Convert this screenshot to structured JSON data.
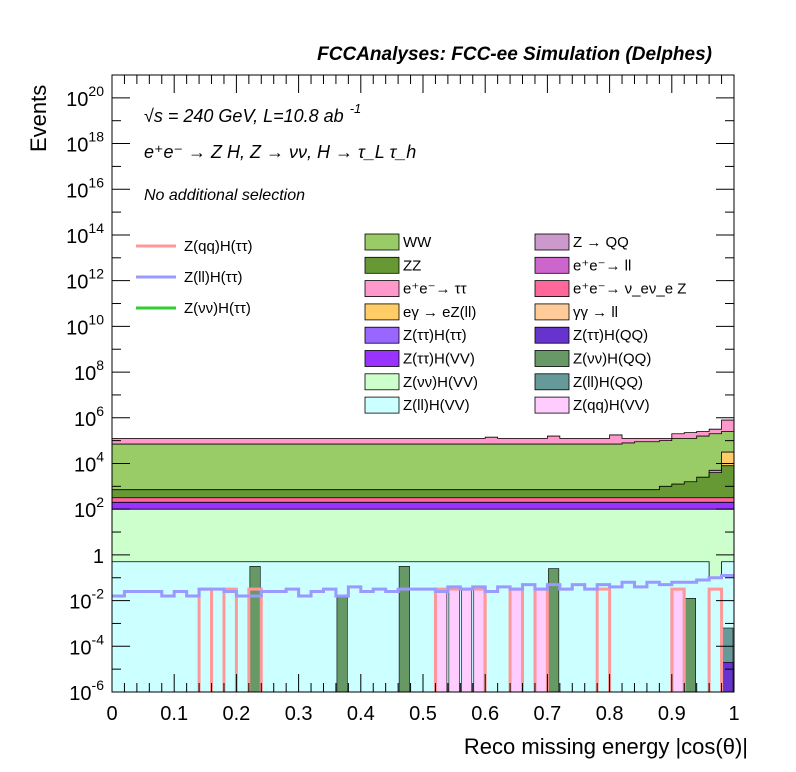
{
  "chart_data": {
    "type": "area",
    "title": "FCCAnalyses: FCC-ee Simulation (Delphes)",
    "xlabel": "Reco missing energy |cos(θ)|",
    "ylabel": "Events",
    "xlim": [
      0,
      1
    ],
    "ylim": [
      1e-06,
      1e+21
    ],
    "yscale": "log",
    "x_ticks": [
      "0",
      "0.1",
      "0.2",
      "0.3",
      "0.4",
      "0.5",
      "0.6",
      "0.7",
      "0.8",
      "0.9",
      "1"
    ],
    "y_ticks": [
      {
        "base": "10",
        "exp": "-6"
      },
      {
        "base": "10",
        "exp": "-4"
      },
      {
        "base": "10",
        "exp": "-2"
      },
      {
        "base": "1",
        "exp": ""
      },
      {
        "base": "10",
        "exp": "2"
      },
      {
        "base": "10",
        "exp": "4"
      },
      {
        "base": "10",
        "exp": "6"
      },
      {
        "base": "10",
        "exp": "8"
      },
      {
        "base": "10",
        "exp": "10"
      },
      {
        "base": "10",
        "exp": "12"
      },
      {
        "base": "10",
        "exp": "14"
      },
      {
        "base": "10",
        "exp": "16"
      },
      {
        "base": "10",
        "exp": "18"
      },
      {
        "base": "10",
        "exp": "20"
      }
    ],
    "annotations": {
      "energy_prefix": "√s = 240 GeV, L=10.8 ab",
      "energy_exp": "-1",
      "process": "e⁺e⁻ → Z H, Z → νν, H → τ_L τ_h",
      "selection": "No additional selection"
    },
    "bin_edges": [
      0,
      0.02,
      0.04,
      0.06,
      0.08,
      0.1,
      0.12,
      0.14,
      0.16,
      0.18,
      0.2,
      0.22,
      0.24,
      0.26,
      0.28,
      0.3,
      0.32,
      0.34,
      0.36,
      0.38,
      0.4,
      0.42,
      0.44,
      0.46,
      0.48,
      0.5,
      0.52,
      0.54,
      0.56,
      0.58,
      0.6,
      0.62,
      0.64,
      0.66,
      0.68,
      0.7,
      0.72,
      0.74,
      0.76,
      0.78,
      0.8,
      0.82,
      0.84,
      0.86,
      0.88,
      0.9,
      0.92,
      0.94,
      0.96,
      0.98,
      1.0
    ],
    "stack_layer_tops_log10": [
      {
        "name": "Z(ll)H(VV)",
        "color": "#ccffff",
        "default": -0.3,
        "overrides": {
          "48": -1.0
        }
      },
      {
        "name": "Z(νν)H(VV)",
        "color": "#ccffcc",
        "default": 2.0,
        "overrides": {}
      },
      {
        "name": "Z(ττ)H(VV)",
        "color": "#9933ff",
        "default": 2.3,
        "overrides": {}
      },
      {
        "name": "e⁺e⁻→ ν_eν_e Z",
        "color": "#ff6699",
        "default": 2.5,
        "overrides": {}
      },
      {
        "name": "ZZ",
        "color": "#669933",
        "default": 2.85,
        "overrides": {
          "44": 3.0,
          "45": 3.1,
          "46": 3.2,
          "47": 3.4,
          "48": 3.6,
          "49": 3.9
        }
      },
      {
        "name": "Z → QQ",
        "color": "#cc99cc",
        "default": 2.85,
        "overrides": {
          "48": 3.7,
          "49": 3.9
        }
      },
      {
        "name": "eγ → eZ(ll)",
        "color": "#ffcc66",
        "default": 2.85,
        "overrides": {
          "49": 4.5
        }
      },
      {
        "name": "WW",
        "color": "#99cc66",
        "default": 4.85,
        "overrides": {
          "41": 4.9,
          "42": 4.95,
          "43": 4.95,
          "44": 5.0,
          "45": 5.1,
          "46": 5.1,
          "47": 5.2,
          "48": 5.3,
          "49": 5.4
        }
      },
      {
        "name": "e⁺e⁻→ ττ",
        "color": "#ff99cc",
        "default": 5.1,
        "overrides": {
          "30": 5.15,
          "35": 5.2,
          "40": 5.25,
          "45": 5.3,
          "46": 5.35,
          "47": 5.4,
          "48": 5.5,
          "49": 5.9
        }
      }
    ],
    "sparse_bins_log10": [
      {
        "name": "Z(νν)H(QQ)",
        "color": "#669966",
        "bins": {
          "11": -0.5,
          "18": -1.8,
          "23": -0.5,
          "35": -0.6,
          "46": -1.9
        }
      },
      {
        "name": "Z(qq)H(VV)",
        "color": "#ffccff",
        "bins": {
          "26": -1.5,
          "27": -1.5,
          "28": -1.5,
          "29": -1.5,
          "32": -1.5,
          "34": -1.5,
          "45": -1.5
        }
      },
      {
        "name": "Z(ll)H(QQ)",
        "color": "#669999",
        "bins": {
          "49": -3.2
        }
      },
      {
        "name": "Z(ττ)H(QQ)",
        "color": "#6633cc",
        "bins": {
          "49": -4.7
        }
      }
    ],
    "lines_log10": [
      {
        "name": "Z(qq)H(ττ)",
        "color": "#ff9999",
        "default": -6.5,
        "overrides": {
          "7": -1.5,
          "9": -1.5,
          "11": -1.5,
          "26": -1.5,
          "27": -1.5,
          "28": -1.5,
          "29": -1.5,
          "32": -1.5,
          "34": -1.5,
          "39": -1.5,
          "45": -1.5,
          "48": -1.5
        }
      },
      {
        "name": "Z(ll)H(ττ)",
        "color": "#9999ff",
        "values": [
          -1.8,
          -1.6,
          -1.6,
          -1.6,
          -1.8,
          -1.6,
          -1.8,
          -1.5,
          -1.5,
          -1.6,
          -1.8,
          -1.8,
          -1.6,
          -1.6,
          -1.5,
          -1.8,
          -1.6,
          -1.5,
          -1.8,
          -1.4,
          -1.6,
          -1.5,
          -1.6,
          -1.5,
          -1.5,
          -1.5,
          -1.6,
          -1.4,
          -1.5,
          -1.4,
          -1.6,
          -1.4,
          -1.5,
          -1.3,
          -1.5,
          -1.3,
          -1.5,
          -1.3,
          -1.5,
          -1.3,
          -1.4,
          -1.2,
          -1.4,
          -1.2,
          -1.3,
          -1.2,
          -1.2,
          -1.1,
          -1.0,
          -0.9
        ]
      },
      {
        "name": "Z(νν)H(ττ)",
        "color": "#33cc33",
        "default": -6.5,
        "overrides": {}
      }
    ],
    "legend": {
      "lines": [
        {
          "label": "Z(qq)H(ττ)",
          "color": "#ff9999"
        },
        {
          "label": "Z(ll)H(ττ)",
          "color": "#9999ff"
        },
        {
          "label": "Z(νν)H(ττ)",
          "color": "#33cc33"
        }
      ],
      "fills_col1": [
        {
          "label": "WW",
          "color": "#99cc66"
        },
        {
          "label": "ZZ",
          "color": "#669933"
        },
        {
          "label": "e⁺e⁻→ ττ",
          "color": "#ff99cc"
        },
        {
          "label": "eγ → eZ(ll)",
          "color": "#ffcc66"
        },
        {
          "label": "Z(ττ)H(ττ)",
          "color": "#9966ff"
        },
        {
          "label": "Z(ττ)H(VV)",
          "color": "#9933ff"
        },
        {
          "label": "Z(νν)H(VV)",
          "color": "#ccffcc"
        },
        {
          "label": "Z(ll)H(VV)",
          "color": "#ccffff"
        }
      ],
      "fills_col2": [
        {
          "label": "Z → QQ",
          "color": "#cc99cc"
        },
        {
          "label": "e⁺e⁻→ ll",
          "color": "#cc66cc"
        },
        {
          "label": "e⁺e⁻→ ν_eν_e Z",
          "color": "#ff6699"
        },
        {
          "label": "γγ → ll",
          "color": "#ffcc99"
        },
        {
          "label": "Z(ττ)H(QQ)",
          "color": "#6633cc"
        },
        {
          "label": "Z(νν)H(QQ)",
          "color": "#669966"
        },
        {
          "label": "Z(ll)H(QQ)",
          "color": "#669999"
        },
        {
          "label": "Z(qq)H(VV)",
          "color": "#ffccff"
        }
      ]
    }
  }
}
